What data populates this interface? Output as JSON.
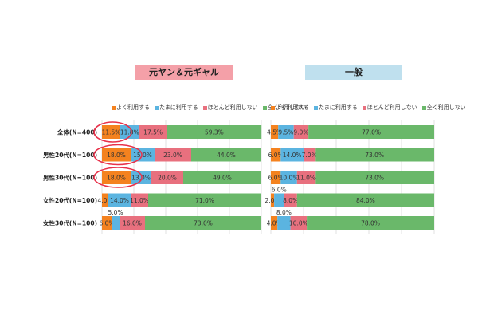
{
  "chart_data": [
    {
      "type": "bar",
      "stacked": "percent",
      "orientation": "horizontal",
      "title": "元ヤン＆元ギャル",
      "title_color": "#f4a0a8",
      "categories": [
        "全体(N=400)",
        "男性20代(N=100)",
        "男性30代(N=100)",
        "女性20代(N=100)",
        "女性30代(N=100)"
      ],
      "series": [
        {
          "name": "よく利用する",
          "color": "#f4821f",
          "values": [
            11.5,
            18.0,
            18.0,
            4.0,
            6.0
          ],
          "labels": [
            "11.5%",
            "18.0%",
            "18.0%",
            "4.0%",
            "6.0%"
          ]
        },
        {
          "name": "たまに利用する",
          "color": "#5bb4e0",
          "values": [
            11.8,
            15.0,
            13.0,
            14.0,
            5.0
          ],
          "labels": [
            "11.8%",
            "15.0%",
            "13.0%",
            "14.0%",
            "5.0%"
          ]
        },
        {
          "name": "ほとんど利用しない",
          "color": "#e8707e",
          "values": [
            17.5,
            23.0,
            20.0,
            11.0,
            16.0
          ],
          "labels": [
            "17.5%",
            "23.0%",
            "20.0%",
            "11.0%",
            "16.0%"
          ]
        },
        {
          "name": "全く利用しない",
          "color": "#6ab86a",
          "values": [
            59.3,
            44.0,
            49.0,
            71.0,
            73.0
          ],
          "labels": [
            "59.3%",
            "44.0%",
            "49.0%",
            "71.0%",
            "73.0%"
          ]
        }
      ],
      "xlim": [
        0,
        100
      ],
      "grid": true,
      "legend": "top",
      "highlighted_series": "よく利用する"
    },
    {
      "type": "bar",
      "stacked": "percent",
      "orientation": "horizontal",
      "title": "一般",
      "title_color": "#bfe0ee",
      "categories": [
        "全体(N=400)",
        "男性20代(N=100)",
        "男性30代(N=100)",
        "女性20代(N=100)",
        "女性30代(N=100)"
      ],
      "series": [
        {
          "name": "よく利用する",
          "color": "#f4821f",
          "values": [
            4.5,
            6.0,
            6.0,
            2.0,
            4.0
          ],
          "labels": [
            "4.5%",
            "6.0%",
            "6.0%",
            "2.0%",
            "4.0%"
          ]
        },
        {
          "name": "たまに利用する",
          "color": "#5bb4e0",
          "values": [
            9.5,
            14.0,
            10.0,
            6.0,
            8.0
          ],
          "labels": [
            "9.5%",
            "14.0%",
            "10.0%",
            "6.0%",
            "8.0%"
          ]
        },
        {
          "name": "ほとんど利用しない",
          "color": "#e8707e",
          "values": [
            9.0,
            7.0,
            11.0,
            8.0,
            10.0
          ],
          "labels": [
            "9.0%",
            "7.0%",
            "11.0%",
            "8.0%",
            "10.0%"
          ]
        },
        {
          "name": "全く利用しない",
          "color": "#6ab86a",
          "values": [
            77.0,
            73.0,
            73.0,
            84.0,
            78.0
          ],
          "labels": [
            "77.0%",
            "73.0%",
            "73.0%",
            "84.0%",
            "78.0%"
          ]
        }
      ],
      "xlim": [
        0,
        100
      ],
      "grid": true,
      "legend": "top"
    }
  ]
}
